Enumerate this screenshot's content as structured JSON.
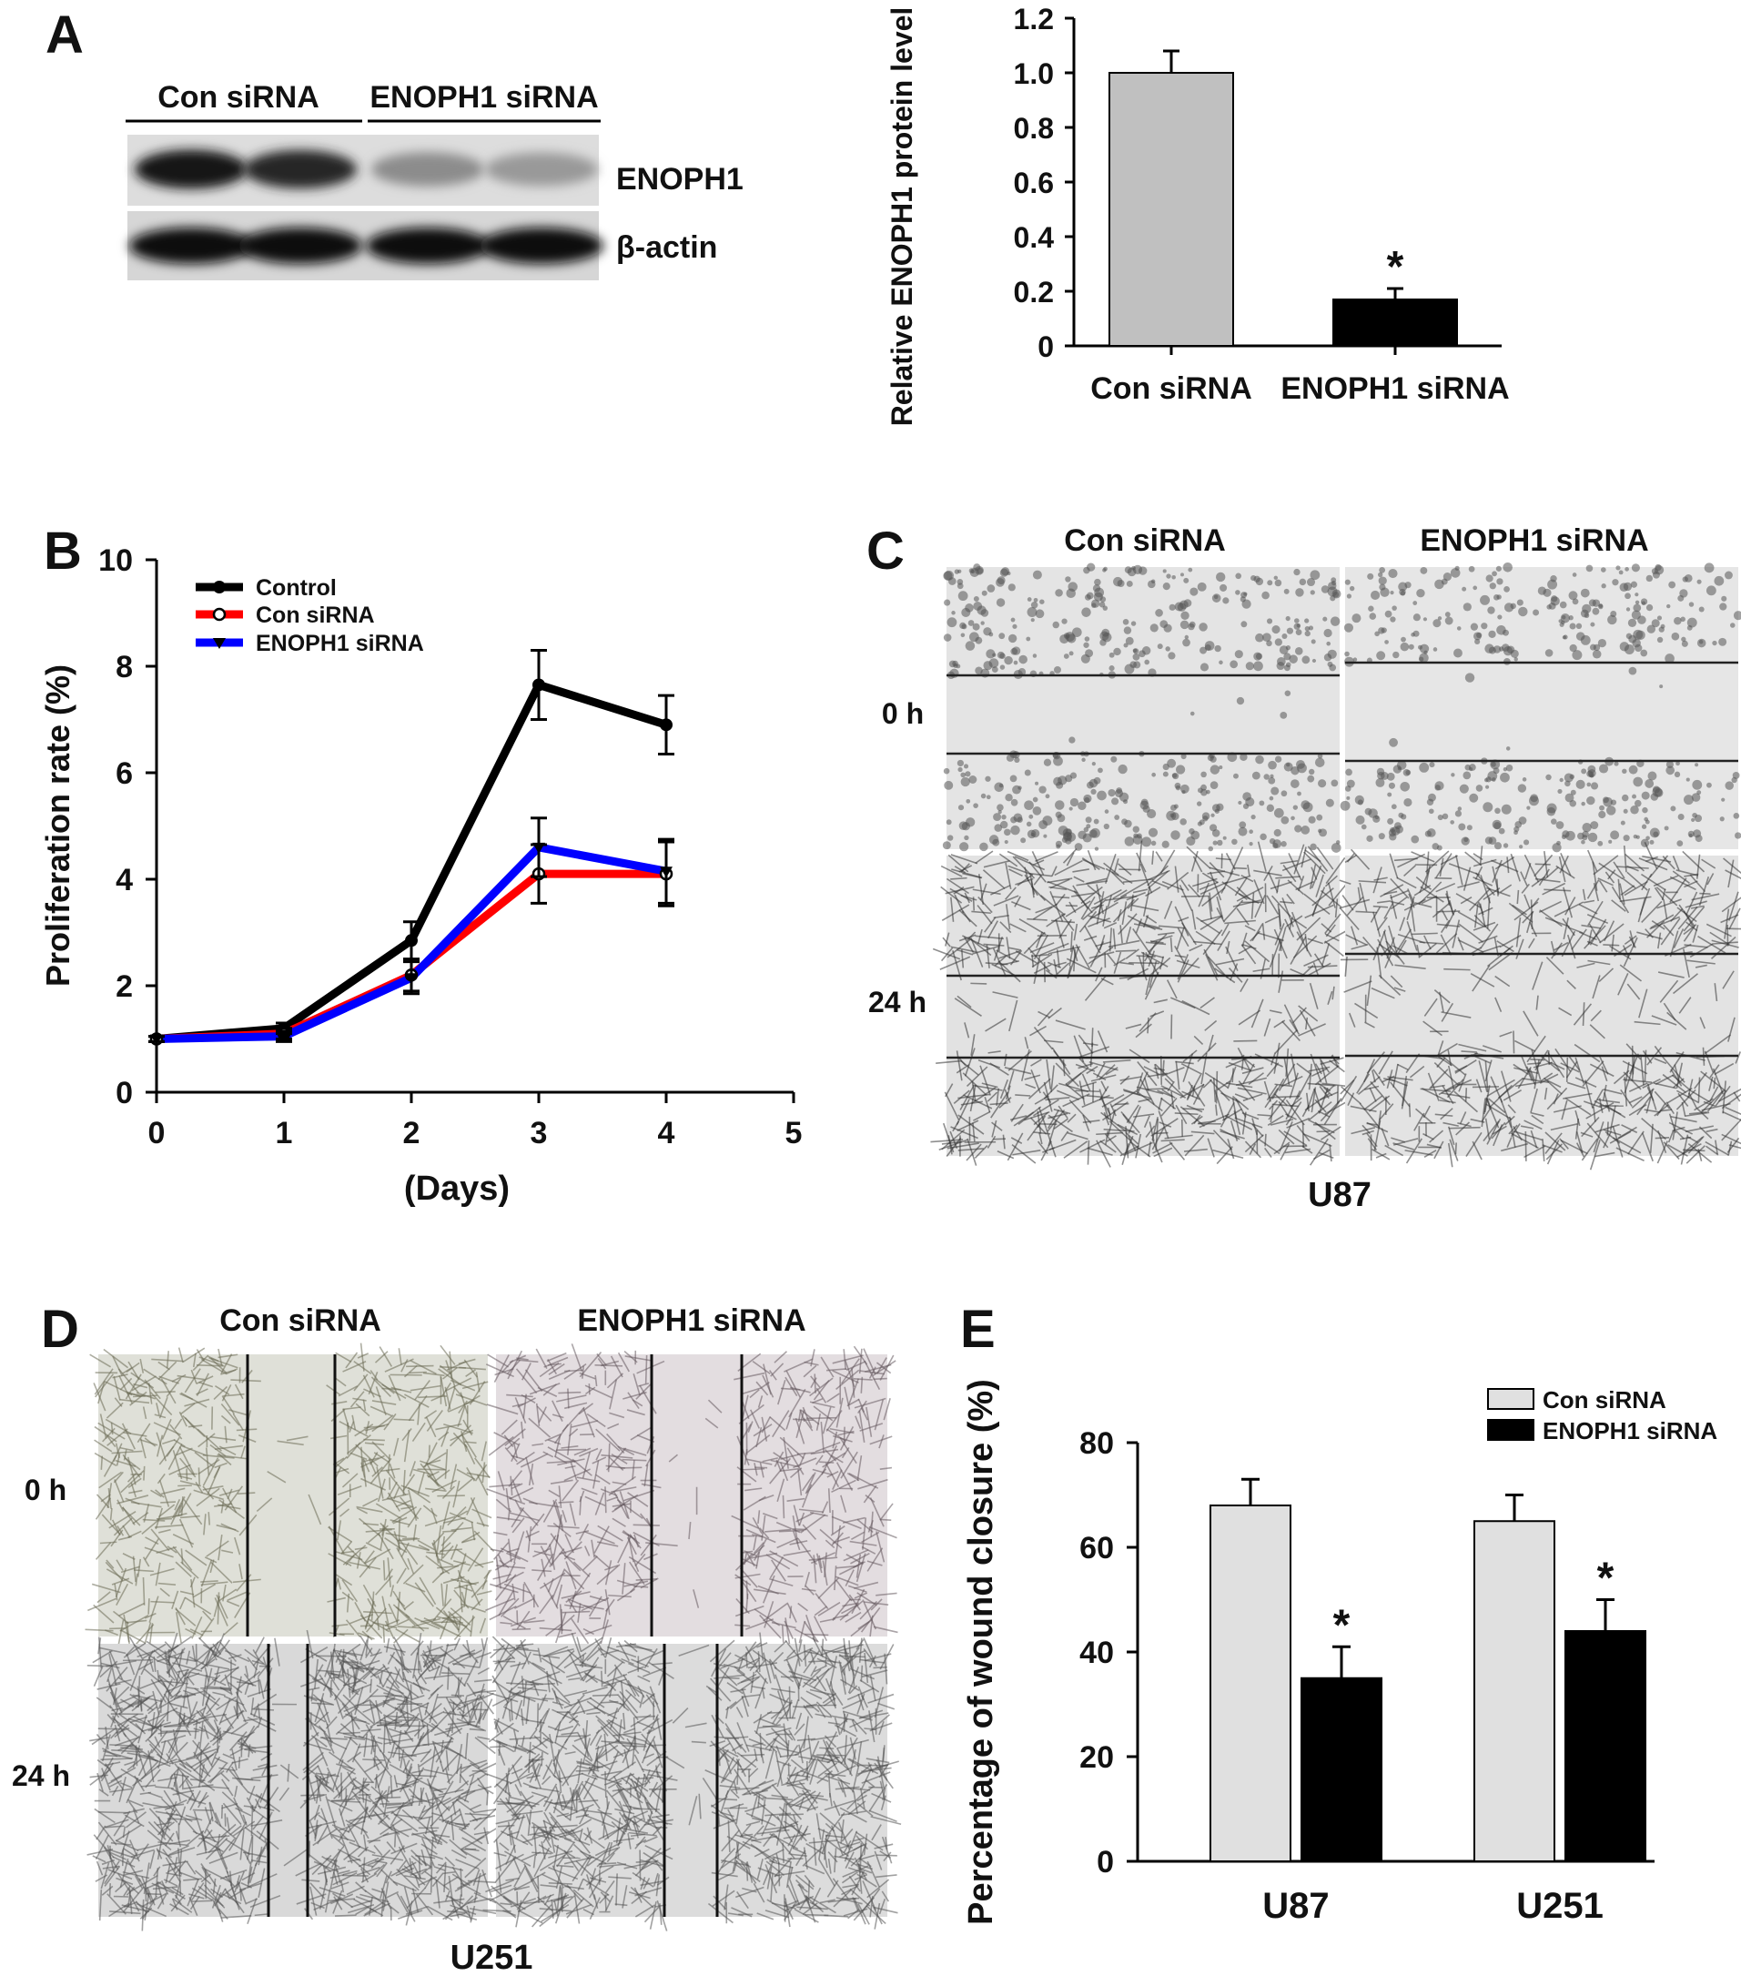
{
  "panel_labels": {
    "a": "A",
    "b": "B",
    "c": "C",
    "d": "D",
    "e": "E"
  },
  "blot": {
    "groups": [
      "Con siRNA",
      "ENOPH1 siRNA"
    ],
    "rows": [
      "ENOPH1",
      "β-actin"
    ],
    "band_intensity": {
      "ENOPH1": [
        0.9,
        0.85,
        0.45,
        0.4
      ],
      "β-actin": [
        0.95,
        0.95,
        0.95,
        0.95
      ]
    }
  },
  "micro_c": {
    "columns": [
      "Con siRNA",
      "ENOPH1 siRNA"
    ],
    "rows": [
      "0 h",
      "24 h"
    ],
    "cell_line": "U87"
  },
  "micro_d": {
    "columns": [
      "Con siRNA",
      "ENOPH1 siRNA"
    ],
    "rows": [
      "0 h",
      "24 h"
    ],
    "cell_line": "U251"
  },
  "chart_data": [
    {
      "type": "bar",
      "panel": "A",
      "categories": [
        "Con siRNA",
        "ENOPH1 siRNA"
      ],
      "values": [
        1.0,
        0.17
      ],
      "errors": [
        0.08,
        0.04
      ],
      "colors": [
        "#c0c0c0",
        "#000000"
      ],
      "significance": [
        "",
        "*"
      ],
      "ylabel": "Relative ENOPH1 protein level",
      "ylim": [
        0,
        1.2
      ],
      "yticks": [
        0,
        0.2,
        0.4,
        0.6,
        0.8,
        1.0,
        1.2
      ],
      "ytick_labels": [
        "0",
        "0.2",
        "0.4",
        "0.6",
        "0.8",
        "1.0",
        "1.2"
      ]
    },
    {
      "type": "line",
      "panel": "B",
      "x": [
        0,
        1,
        2,
        3,
        4
      ],
      "series": [
        {
          "name": "Control",
          "color": "#000000",
          "marker": "filled-circle",
          "values": [
            1.0,
            1.2,
            2.85,
            7.65,
            6.9
          ],
          "errors": [
            0.05,
            0.1,
            0.35,
            0.65,
            0.55
          ]
        },
        {
          "name": "Con siRNA",
          "color": "#ff0000",
          "marker": "open-circle",
          "values": [
            1.0,
            1.1,
            2.2,
            4.1,
            4.1
          ],
          "errors": [
            0.05,
            0.1,
            0.3,
            0.55,
            0.6
          ]
        },
        {
          "name": "ENOPH1 siRNA",
          "color": "#0000ff",
          "marker": "down-triangle",
          "values": [
            1.0,
            1.05,
            2.15,
            4.6,
            4.15
          ],
          "errors": [
            0.05,
            0.1,
            0.3,
            0.55,
            0.6
          ]
        }
      ],
      "xlabel": "(Days)",
      "ylabel": "Proliferation rate (%)",
      "xlim": [
        0,
        5
      ],
      "ylim": [
        0,
        10
      ],
      "xticks": [
        0,
        1,
        2,
        3,
        4,
        5
      ],
      "yticks": [
        0,
        2,
        4,
        6,
        8,
        10
      ],
      "legend_position": "top-left"
    },
    {
      "type": "bar",
      "panel": "E",
      "categories": [
        "U87",
        "U251"
      ],
      "series": [
        {
          "name": "Con siRNA",
          "color": "#e0e0e0",
          "values": [
            68,
            65
          ],
          "errors": [
            5,
            5
          ]
        },
        {
          "name": "ENOPH1 siRNA",
          "color": "#000000",
          "values": [
            35,
            44
          ],
          "errors": [
            6,
            6
          ]
        }
      ],
      "significance": [
        "*",
        "*"
      ],
      "ylabel": "Percentage of wound closure (%)",
      "ylim": [
        0,
        80
      ],
      "yticks": [
        0,
        20,
        40,
        60,
        80
      ],
      "legend_position": "top-right"
    }
  ]
}
